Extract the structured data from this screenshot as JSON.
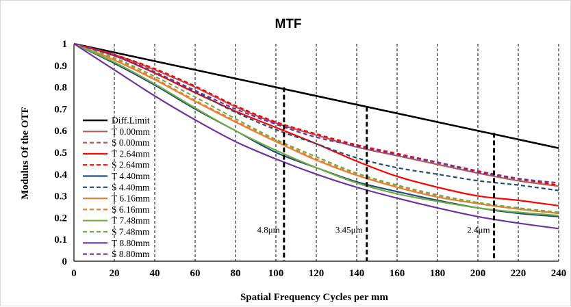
{
  "chart_data": {
    "type": "line",
    "title": "MTF",
    "xlabel": "Spatial Frequency Cycles per mm",
    "ylabel": "Modulus Of the OTF",
    "xlim": [
      0,
      240
    ],
    "ylim": [
      0,
      1
    ],
    "x_ticks": [
      0,
      20,
      40,
      60,
      80,
      100,
      120,
      140,
      160,
      180,
      200,
      220,
      240
    ],
    "y_ticks": [
      0,
      0.1,
      0.2,
      0.3,
      0.4,
      0.5,
      0.6,
      0.7,
      0.8,
      0.9,
      1
    ],
    "x_tick_labels": [
      "0",
      "20",
      "40",
      "60",
      "80",
      "100",
      "120",
      "140",
      "160",
      "180",
      "200",
      "220",
      "240"
    ],
    "y_tick_labels": [
      "0",
      "0.1",
      "0.2",
      "0.3",
      "0.4",
      "0.5",
      "0.6",
      "0.7",
      "0.8",
      "0.9",
      "1"
    ],
    "grid": "vertical dashed",
    "legend_position": "left",
    "series": [
      {
        "name": "Diff.Limit",
        "color": "#000000",
        "dash": "solid",
        "x": [
          0,
          60,
          120,
          180,
          240
        ],
        "y": [
          1.0,
          0.88,
          0.76,
          0.64,
          0.52
        ]
      },
      {
        "name": "T 0.00mm",
        "color": "#b05a5a",
        "dash": "solid",
        "x": [
          0,
          20,
          40,
          60,
          80,
          100,
          120,
          140,
          160,
          180,
          200,
          220,
          240
        ],
        "y": [
          1.0,
          0.95,
          0.88,
          0.8,
          0.71,
          0.635,
          0.58,
          0.525,
          0.485,
          0.445,
          0.405,
          0.37,
          0.345
        ]
      },
      {
        "name": "S 0.00mm",
        "color": "#b05a5a",
        "dash": "dashed",
        "x": [
          0,
          20,
          40,
          60,
          80,
          100,
          120,
          140,
          160,
          180,
          200,
          220,
          240
        ],
        "y": [
          1.0,
          0.95,
          0.885,
          0.805,
          0.715,
          0.64,
          0.585,
          0.53,
          0.49,
          0.45,
          0.41,
          0.375,
          0.35
        ]
      },
      {
        "name": "T 2.64mm",
        "color": "#ff0000",
        "dash": "solid",
        "x": [
          0,
          20,
          40,
          60,
          80,
          100,
          120,
          140,
          160,
          180,
          200,
          220,
          240
        ],
        "y": [
          1.0,
          0.945,
          0.865,
          0.775,
          0.69,
          0.615,
          0.54,
          0.46,
          0.39,
          0.34,
          0.3,
          0.28,
          0.255
        ]
      },
      {
        "name": "S 2.64mm",
        "color": "#ff0000",
        "dash": "dashed",
        "x": [
          0,
          20,
          40,
          60,
          80,
          100,
          120,
          140,
          160,
          180,
          200,
          220,
          240
        ],
        "y": [
          1.0,
          0.95,
          0.885,
          0.805,
          0.715,
          0.64,
          0.585,
          0.535,
          0.495,
          0.455,
          0.415,
          0.38,
          0.35
        ]
      },
      {
        "name": "T 4.40mm",
        "color": "#1f4e79",
        "dash": "solid",
        "x": [
          0,
          20,
          40,
          60,
          80,
          100,
          120,
          140,
          160,
          180,
          200,
          220,
          240
        ],
        "y": [
          1.0,
          0.91,
          0.81,
          0.7,
          0.6,
          0.5,
          0.43,
          0.365,
          0.32,
          0.28,
          0.245,
          0.22,
          0.205
        ]
      },
      {
        "name": "S 4.40mm",
        "color": "#1f4e79",
        "dash": "dashed",
        "x": [
          0,
          20,
          40,
          60,
          80,
          100,
          120,
          140,
          160,
          180,
          200,
          220,
          240
        ],
        "y": [
          1.0,
          0.945,
          0.87,
          0.78,
          0.685,
          0.605,
          0.54,
          0.475,
          0.43,
          0.4,
          0.37,
          0.35,
          0.325
        ]
      },
      {
        "name": "T 6.16mm",
        "color": "#ed7d31",
        "dash": "solid",
        "x": [
          0,
          20,
          40,
          60,
          80,
          100,
          120,
          140,
          160,
          180,
          200,
          220,
          240
        ],
        "y": [
          1.0,
          0.925,
          0.835,
          0.735,
          0.64,
          0.55,
          0.465,
          0.395,
          0.34,
          0.295,
          0.265,
          0.24,
          0.22
        ]
      },
      {
        "name": "S 6.16mm",
        "color": "#ed7d31",
        "dash": "dashed",
        "x": [
          0,
          20,
          40,
          60,
          80,
          100,
          120,
          140,
          160,
          180,
          200,
          220,
          240
        ],
        "y": [
          1.0,
          0.93,
          0.84,
          0.74,
          0.645,
          0.555,
          0.47,
          0.4,
          0.345,
          0.3,
          0.265,
          0.24,
          0.22
        ]
      },
      {
        "name": "T 7.48mm",
        "color": "#70ad47",
        "dash": "solid",
        "x": [
          0,
          20,
          40,
          60,
          80,
          100,
          120,
          140,
          160,
          180,
          200,
          220,
          240
        ],
        "y": [
          1.0,
          0.915,
          0.815,
          0.705,
          0.6,
          0.51,
          0.43,
          0.36,
          0.31,
          0.275,
          0.245,
          0.225,
          0.21
        ]
      },
      {
        "name": "S 7.48mm",
        "color": "#70ad47",
        "dash": "dashed",
        "x": [
          0,
          20,
          40,
          60,
          80,
          100,
          120,
          140,
          160,
          180,
          200,
          220,
          240
        ],
        "y": [
          1.0,
          0.935,
          0.85,
          0.755,
          0.655,
          0.56,
          0.48,
          0.405,
          0.35,
          0.305,
          0.27,
          0.245,
          0.225
        ]
      },
      {
        "name": "T 8.80mm",
        "color": "#7030a0",
        "dash": "solid",
        "x": [
          0,
          20,
          40,
          60,
          80,
          100,
          120,
          140,
          160,
          180,
          200,
          220,
          240
        ],
        "y": [
          1.0,
          0.88,
          0.76,
          0.65,
          0.55,
          0.47,
          0.4,
          0.34,
          0.29,
          0.245,
          0.205,
          0.175,
          0.15
        ]
      },
      {
        "name": "S 8.80mm",
        "color": "#7030a0",
        "dash": "dashed",
        "x": [
          0,
          20,
          40,
          60,
          80,
          100,
          120,
          140,
          160,
          180,
          200,
          220,
          240
        ],
        "y": [
          1.0,
          0.945,
          0.87,
          0.785,
          0.7,
          0.63,
          0.57,
          0.53,
          0.49,
          0.455,
          0.41,
          0.38,
          0.36
        ]
      }
    ],
    "annotations": [
      {
        "text": "4.8μm",
        "x": 104,
        "y_top": 0.8
      },
      {
        "text": "3.45μm",
        "x": 145,
        "y_top": 0.71
      },
      {
        "text": "2.4μm",
        "x": 208,
        "y_top": 0.59
      }
    ]
  }
}
